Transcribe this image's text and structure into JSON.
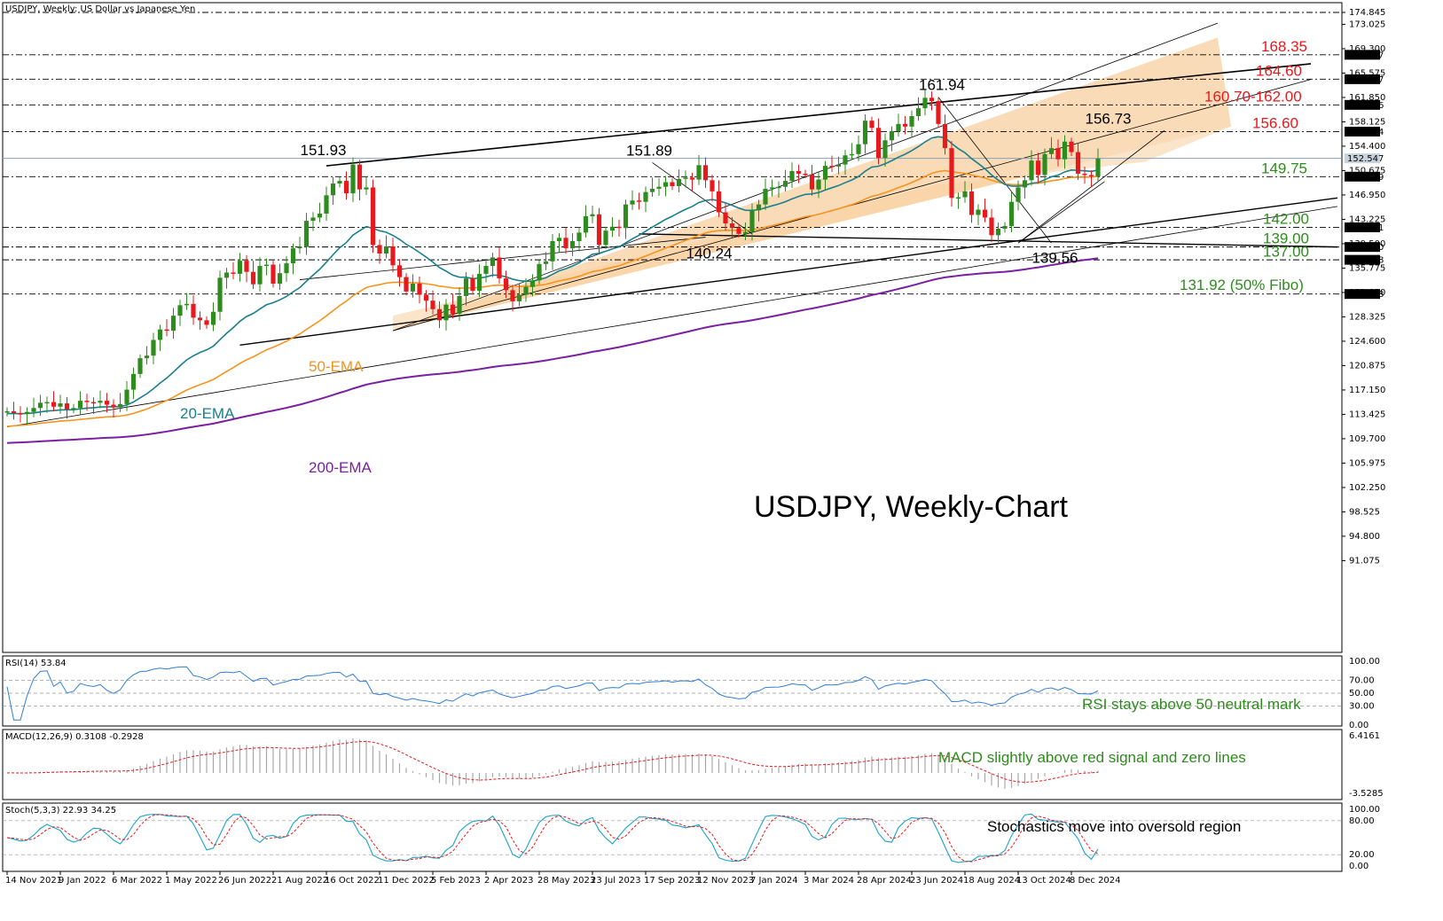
{
  "header": {
    "title": "USDJPY, Weekly:  US Dollar vs Japanese Yen"
  },
  "chart_data": {
    "type": "candlestick",
    "title": "USDJPY, Weekly-Chart",
    "price_axis": {
      "range": [
        88.0,
        176.0
      ],
      "ticks": [
        "174.845",
        "173.025",
        "169.300",
        "165.575",
        "161.850",
        "158.125",
        "154.400",
        "150.675",
        "146.950",
        "143.225",
        "139.500",
        "135.775",
        "132.050",
        "128.325",
        "124.600",
        "120.875",
        "117.150",
        "113.425",
        "109.700",
        "105.975",
        "102.250",
        "98.525",
        "94.800",
        "91.075"
      ],
      "price_tags": [
        {
          "label": "168.367",
          "value": 168.367,
          "color": "#000000",
          "text": "#ffffff"
        },
        {
          "label": "164.637",
          "value": 164.637,
          "color": "#000000",
          "text": "#ffffff"
        },
        {
          "label": "160.716",
          "value": 160.716,
          "color": "#000000",
          "text": "#ffffff"
        },
        {
          "label": "156.634",
          "value": 156.634,
          "color": "#000000",
          "text": "#ffffff"
        },
        {
          "label": "152.547",
          "value": 152.547,
          "color": "#c8d2dc",
          "text": "#000000"
        },
        {
          "label": "149.749",
          "value": 149.749,
          "color": "#000000",
          "text": "#ffffff"
        },
        {
          "label": "142.001",
          "value": 142.001,
          "color": "#000000",
          "text": "#ffffff"
        },
        {
          "label": "139.000",
          "value": 139.0,
          "color": "#000000",
          "text": "#ffffff"
        },
        {
          "label": "137.038",
          "value": 137.038,
          "color": "#000000",
          "text": "#ffffff"
        },
        {
          "label": "131.818",
          "value": 131.818,
          "color": "#000000",
          "text": "#ffffff"
        }
      ]
    },
    "x_labels": [
      "14 Nov 2021",
      "9 Jan 2022",
      "6 Mar 2022",
      "1 May 2022",
      "26 Jun 2022",
      "21 Aug 2022",
      "16 Oct 2022",
      "11 Dec 2022",
      "5 Feb 2023",
      "2 Apr 2023",
      "28 May 2023",
      "23 Jul 2023",
      "17 Sep 2023",
      "12 Nov 2023",
      "7 Jan 2024",
      "3 Mar 2024",
      "28 Apr 2024",
      "23 Jun 2024",
      "18 Aug 2024",
      "13 Oct 2024",
      "8 Dec 2024"
    ],
    "levels": [
      {
        "label": "168.35",
        "value": 168.35,
        "color": "#e8191c"
      },
      {
        "label": "164.60",
        "value": 164.6,
        "color": "#e8191c"
      },
      {
        "label": "160.70-162.00",
        "value": 160.7,
        "color": "#e8191c"
      },
      {
        "label": "156.60",
        "value": 156.6,
        "color": "#e8191c"
      },
      {
        "label": "149.75",
        "value": 149.75,
        "color": "#2e8b1e"
      },
      {
        "label": "142.00",
        "value": 142.0,
        "color": "#2e8b1e"
      },
      {
        "label": "139.00",
        "value": 139.0,
        "color": "#2e8b1e"
      },
      {
        "label": "137.00",
        "value": 137.0,
        "color": "#2e8b1e"
      },
      {
        "label": "131.92 (50% Fibo)",
        "value": 131.92,
        "color": "#2e8b1e"
      }
    ],
    "annotations": [
      {
        "label": "151.93",
        "week": 47,
        "value": 151.93
      },
      {
        "label": "151.89",
        "week": 96,
        "value": 151.89
      },
      {
        "label": "140.24",
        "week": 105,
        "value": 140.24
      },
      {
        "label": "161.94",
        "week": 140,
        "value": 161.94
      },
      {
        "label": "139.56",
        "week": 157,
        "value": 139.56
      },
      {
        "label": "156.73",
        "week": 165,
        "value": 156.73
      }
    ],
    "ema_labels": {
      "ema20": "20-EMA",
      "ema50": "50-EMA",
      "ema200": "200-EMA"
    },
    "colors": {
      "up": "#2e8b1e",
      "down": "#e8191c",
      "ema20": "#1a7f8c",
      "ema50": "#f7931e",
      "ema200": "#7b1fa2",
      "channel": "#f8cf9f",
      "rsi": "#2f7ed8",
      "macd_signal": "#e8191c",
      "stoch_k": "#1aa3c8",
      "stoch_d": "#e8191c"
    },
    "weekly_close": [
      113.9,
      113.6,
      113.5,
      113.8,
      114.4,
      115.2,
      115.3,
      114.6,
      115.1,
      114.2,
      114.4,
      115.5,
      115.3,
      115.2,
      115.5,
      114.9,
      114.5,
      115.0,
      117.2,
      119.6,
      122.0,
      122.4,
      124.8,
      126.4,
      126.2,
      128.5,
      130.1,
      130.3,
      128.2,
      127.8,
      127.1,
      129.1,
      134.3,
      135.1,
      134.9,
      136.9,
      135.2,
      133.3,
      136.1,
      136.3,
      133.4,
      135.0,
      136.5,
      138.8,
      139.0,
      143.0,
      143.5,
      144.1,
      146.9,
      148.7,
      149.1,
      147.2,
      151.6,
      147.8,
      148.1,
      139.3,
      138.0,
      139.1,
      136.2,
      134.4,
      132.2,
      133.4,
      131.7,
      130.8,
      129.5,
      127.8,
      130.2,
      128.8,
      131.5,
      134.2,
      132.3,
      134.9,
      136.1,
      137.4,
      134.2,
      132.4,
      130.7,
      131.7,
      132.9,
      133.9,
      136.4,
      136.8,
      139.9,
      140.4,
      138.8,
      139.9,
      141.2,
      143.7,
      144.0,
      139.3,
      141.5,
      142.1,
      141.9,
      145.5,
      146.1,
      145.9,
      147.4,
      147.9,
      148.2,
      148.9,
      148.3,
      149.4,
      149.6,
      149.3,
      151.5,
      149.2,
      147.5,
      144.3,
      142.6,
      141.9,
      141.0,
      141.3,
      144.6,
      145.5,
      147.9,
      148.1,
      148.2,
      149.1,
      150.6,
      150.2,
      150.1,
      147.8,
      149.3,
      151.4,
      151.3,
      151.6,
      153.0,
      153.2,
      154.7,
      158.3,
      157.2,
      152.6,
      155.3,
      156.7,
      157.8,
      157.4,
      159.0,
      160.2,
      161.8,
      161.3,
      157.8,
      154.1,
      146.5,
      146.6,
      147.5,
      143.9,
      144.7,
      143.5,
      140.8,
      141.8,
      142.2,
      145.9,
      148.1,
      149.2,
      152.2,
      150.0,
      153.2,
      154.1,
      152.4,
      155.1,
      153.5,
      150.2,
      150.0,
      149.8,
      152.5
    ],
    "rsi": {
      "label": "RSI(14) 53.84",
      "range": [
        0,
        100
      ],
      "levels": [
        "100.00",
        "70.00",
        "50.00",
        "30.00",
        "0.00"
      ]
    },
    "macd": {
      "label": "MACD(12,26,9) 0.3108 -0.2928",
      "range": [
        -3.52,
        6.41
      ],
      "ticks": [
        "6.4161",
        "-3.5285"
      ]
    },
    "stoch": {
      "label": "Stoch(5,3,3) 22.93 34.25",
      "range": [
        0,
        100
      ],
      "levels": [
        "100.00",
        "80.00",
        "20.00",
        "0.00"
      ]
    },
    "notes": {
      "rsi": "RSI stays above 50 neutral mark",
      "macd": "MACD slightly above red signal and zero lines",
      "stoch": "Stochastics move into oversold region"
    }
  }
}
